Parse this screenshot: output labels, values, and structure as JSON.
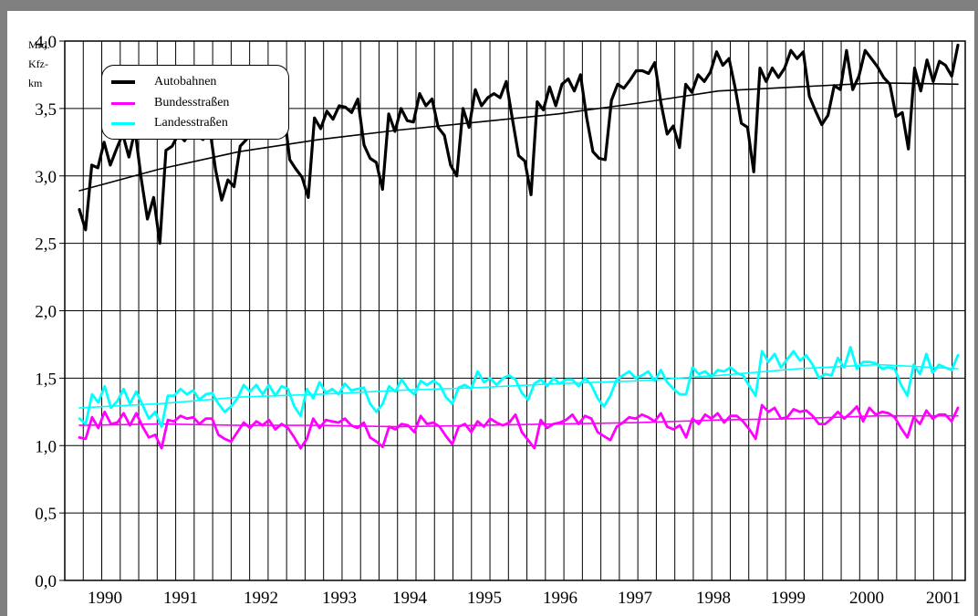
{
  "chart_data": {
    "type": "line",
    "unit_label": [
      "Mrd.",
      "Kfz-",
      "km"
    ],
    "ylim": [
      0,
      4.0
    ],
    "y_ticks": [
      "0,0",
      "0,5",
      "1,0",
      "1,5",
      "2,0",
      "2,5",
      "3,0",
      "3,5",
      "4,0"
    ],
    "x_tick_labels": [
      "1990",
      "1991",
      "1992",
      "1993",
      "1994",
      "1995",
      "1996",
      "1997",
      "1998",
      "1999",
      "2000",
      "2001"
    ],
    "grid": "vertical monthly gridlines, horizontal at each 0.5",
    "legend_position": "top-left",
    "series": [
      {
        "name": "Autobahnen",
        "color": "#000000",
        "values": [
          2.75,
          2.6,
          3.08,
          3.06,
          3.25,
          3.08,
          3.2,
          3.31,
          3.14,
          3.34,
          2.98,
          2.68,
          2.84,
          2.5,
          3.19,
          3.22,
          3.31,
          3.26,
          3.34,
          3.3,
          3.27,
          3.38,
          3.05,
          2.82,
          2.97,
          2.92,
          3.22,
          3.27,
          3.38,
          3.3,
          3.47,
          3.35,
          3.38,
          3.5,
          3.12,
          3.05,
          2.99,
          2.84,
          3.43,
          3.35,
          3.48,
          3.42,
          3.52,
          3.51,
          3.47,
          3.57,
          3.23,
          3.13,
          3.1,
          2.9,
          3.46,
          3.33,
          3.5,
          3.41,
          3.4,
          3.61,
          3.52,
          3.57,
          3.36,
          3.3,
          3.08,
          3.0,
          3.5,
          3.36,
          3.64,
          3.52,
          3.58,
          3.61,
          3.58,
          3.7,
          3.42,
          3.15,
          3.11,
          2.86,
          3.55,
          3.49,
          3.66,
          3.52,
          3.68,
          3.72,
          3.63,
          3.75,
          3.43,
          3.18,
          3.13,
          3.12,
          3.56,
          3.68,
          3.65,
          3.71,
          3.78,
          3.78,
          3.76,
          3.84,
          3.54,
          3.31,
          3.37,
          3.21,
          3.68,
          3.62,
          3.75,
          3.7,
          3.77,
          3.92,
          3.82,
          3.87,
          3.65,
          3.39,
          3.36,
          3.03,
          3.8,
          3.7,
          3.8,
          3.73,
          3.8,
          3.93,
          3.87,
          3.92,
          3.59,
          3.48,
          3.38,
          3.45,
          3.67,
          3.64,
          3.93,
          3.64,
          3.74,
          3.93,
          3.87,
          3.81,
          3.73,
          3.68,
          3.44,
          3.47,
          3.2,
          3.8,
          3.63,
          3.86,
          3.7,
          3.85,
          3.82,
          3.74,
          3.97
        ]
      },
      {
        "name": "Autobahnen Trend",
        "color": "#000000",
        "values": [
          2.89,
          3.05,
          3.18,
          3.27,
          3.34,
          3.4,
          3.46,
          3.54,
          3.63,
          3.66,
          3.69,
          3.68
        ]
      },
      {
        "name": "Bundesstraßen",
        "color": "#ff00ff",
        "values": [
          1.06,
          1.05,
          1.21,
          1.13,
          1.25,
          1.16,
          1.17,
          1.24,
          1.15,
          1.24,
          1.14,
          1.06,
          1.08,
          0.98,
          1.19,
          1.18,
          1.22,
          1.2,
          1.21,
          1.16,
          1.2,
          1.2,
          1.08,
          1.05,
          1.03,
          1.1,
          1.17,
          1.13,
          1.18,
          1.15,
          1.19,
          1.12,
          1.16,
          1.13,
          1.06,
          0.98,
          1.05,
          1.2,
          1.13,
          1.19,
          1.18,
          1.17,
          1.2,
          1.15,
          1.13,
          1.17,
          1.06,
          1.03,
          0.99,
          1.14,
          1.12,
          1.16,
          1.15,
          1.1,
          1.22,
          1.16,
          1.17,
          1.14,
          1.07,
          1.01,
          1.14,
          1.16,
          1.1,
          1.18,
          1.14,
          1.2,
          1.17,
          1.15,
          1.17,
          1.23,
          1.1,
          1.04,
          0.98,
          1.19,
          1.13,
          1.16,
          1.17,
          1.19,
          1.23,
          1.16,
          1.22,
          1.2,
          1.1,
          1.07,
          1.04,
          1.14,
          1.17,
          1.21,
          1.2,
          1.23,
          1.21,
          1.18,
          1.24,
          1.14,
          1.12,
          1.15,
          1.06,
          1.2,
          1.16,
          1.23,
          1.2,
          1.24,
          1.17,
          1.22,
          1.22,
          1.18,
          1.12,
          1.05,
          1.3,
          1.25,
          1.28,
          1.2,
          1.21,
          1.27,
          1.25,
          1.26,
          1.22,
          1.16,
          1.16,
          1.2,
          1.25,
          1.2,
          1.24,
          1.29,
          1.18,
          1.28,
          1.23,
          1.25,
          1.24,
          1.21,
          1.13,
          1.06,
          1.21,
          1.16,
          1.26,
          1.2,
          1.23,
          1.23,
          1.18,
          1.28
        ]
      },
      {
        "name": "Bundesstraßen Trend",
        "color": "#ff00ff",
        "values": [
          1.15,
          1.16,
          1.15,
          1.15,
          1.14,
          1.15,
          1.16,
          1.17,
          1.19,
          1.2,
          1.22,
          1.22
        ]
      },
      {
        "name": "Landesstraßen",
        "color": "#00ffff",
        "values": [
          1.2,
          1.16,
          1.38,
          1.32,
          1.44,
          1.28,
          1.33,
          1.42,
          1.31,
          1.4,
          1.3,
          1.2,
          1.25,
          1.14,
          1.37,
          1.37,
          1.42,
          1.38,
          1.41,
          1.34,
          1.38,
          1.39,
          1.31,
          1.25,
          1.29,
          1.35,
          1.45,
          1.4,
          1.45,
          1.38,
          1.45,
          1.37,
          1.44,
          1.42,
          1.29,
          1.22,
          1.42,
          1.35,
          1.47,
          1.39,
          1.42,
          1.38,
          1.46,
          1.41,
          1.42,
          1.43,
          1.31,
          1.25,
          1.31,
          1.44,
          1.4,
          1.49,
          1.42,
          1.38,
          1.48,
          1.45,
          1.48,
          1.45,
          1.36,
          1.31,
          1.43,
          1.45,
          1.42,
          1.55,
          1.47,
          1.5,
          1.45,
          1.5,
          1.52,
          1.49,
          1.39,
          1.34,
          1.46,
          1.49,
          1.44,
          1.5,
          1.46,
          1.49,
          1.49,
          1.44,
          1.5,
          1.45,
          1.35,
          1.29,
          1.37,
          1.49,
          1.52,
          1.55,
          1.5,
          1.52,
          1.55,
          1.48,
          1.56,
          1.47,
          1.42,
          1.38,
          1.38,
          1.58,
          1.53,
          1.55,
          1.51,
          1.56,
          1.55,
          1.58,
          1.54,
          1.52,
          1.44,
          1.37,
          1.7,
          1.62,
          1.68,
          1.58,
          1.64,
          1.7,
          1.63,
          1.67,
          1.6,
          1.5,
          1.53,
          1.52,
          1.65,
          1.58,
          1.73,
          1.57,
          1.62,
          1.62,
          1.61,
          1.57,
          1.58,
          1.57,
          1.45,
          1.37,
          1.6,
          1.53,
          1.68,
          1.54,
          1.6,
          1.58,
          1.56,
          1.67
        ]
      },
      {
        "name": "Landesstraßen Trend",
        "color": "#00ffff",
        "values": [
          1.28,
          1.31,
          1.36,
          1.38,
          1.41,
          1.43,
          1.46,
          1.48,
          1.52,
          1.57,
          1.6,
          1.57
        ]
      }
    ]
  },
  "legend": {
    "items": [
      {
        "label": "Autobahnen",
        "color": "#000000"
      },
      {
        "label": "Bundesstraßen",
        "color": "#ff00ff"
      },
      {
        "label": "Landesstraßen",
        "color": "#00ffff"
      }
    ]
  }
}
